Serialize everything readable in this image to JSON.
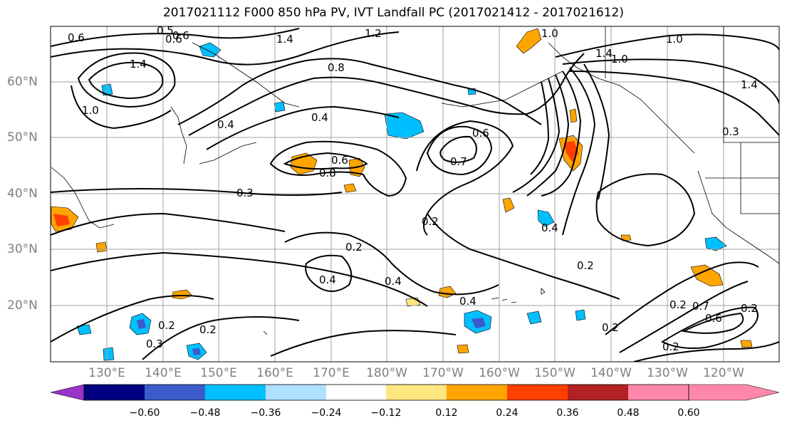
{
  "title": "2017021112 F000 850 hPa PV, IVT Landfall PC (2017021412 - 2017021612)",
  "map": {
    "lat_labels": [
      "60°N",
      "50°N",
      "40°N",
      "30°N",
      "20°N"
    ],
    "lon_labels": [
      "130°E",
      "140°E",
      "150°E",
      "160°E",
      "170°E",
      "180°W",
      "170°W",
      "160°W",
      "150°W",
      "140°W",
      "130°W",
      "120°W"
    ],
    "contour_labels": [
      "0.6",
      "0.5",
      "0.6",
      "1.2",
      "1.4",
      "1.4",
      "1.0",
      "0.8",
      "0.4",
      "0.4",
      "0.3",
      "0.6",
      "0.8",
      "0.6",
      "0.7",
      "0.6",
      "1.0",
      "1.0",
      "1.4",
      "1.0",
      "1.4",
      "0.3",
      "0.2",
      "0.4",
      "0.2",
      "0.4",
      "0.2",
      "0.4",
      "0.2",
      "0.3",
      "0.2",
      "0.7",
      "0.6",
      "0.4",
      "0.2",
      "0.2",
      "0.2",
      "0.2"
    ]
  },
  "colorbar": {
    "ticks": [
      "−0.60",
      "−0.48",
      "−0.36",
      "−0.24",
      "−0.12",
      "0.12",
      "0.24",
      "0.36",
      "0.48",
      "0.60"
    ],
    "colors": [
      "#9933cc",
      "#000080",
      "#3b5bcc",
      "#00bfff",
      "#b0e0ff",
      "#ffffff",
      "#ffe680",
      "#ffa500",
      "#ff4000",
      "#b22222",
      "#ff88aa"
    ]
  }
}
